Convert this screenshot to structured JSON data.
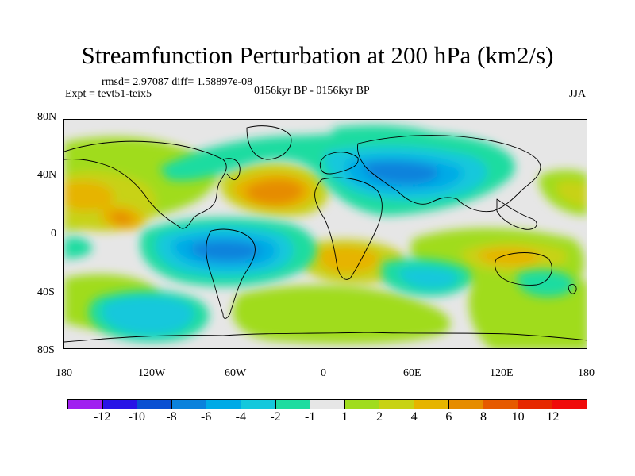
{
  "title": "Streamfunction Perturbation at 200 hPa (km2/s)",
  "stats_line": "rmsd= 2.97087 diff= 1.58897e-08",
  "experiment": "Expt = tevt51-teix5",
  "period": "0156kyr BP - 0156kyr BP",
  "season": "JJA",
  "lat_labels": [
    "80N",
    "40N",
    "0",
    "40S",
    "80S"
  ],
  "lon_labels": [
    "180",
    "120W",
    "60W",
    "0",
    "60E",
    "120E",
    "180"
  ],
  "colorbar": {
    "labels": [
      "-12",
      "-10",
      "-8",
      "-6",
      "-4",
      "-2",
      "-1",
      "1",
      "2",
      "4",
      "6",
      "8",
      "10",
      "12"
    ],
    "colors": [
      "#a020f0",
      "#2814e6",
      "#0a50d2",
      "#0a82dc",
      "#00aae6",
      "#14c8dc",
      "#1edca0",
      "#e6e6e6",
      "#a0dc1e",
      "#c8d214",
      "#e6b400",
      "#e68c00",
      "#e65a00",
      "#e62800",
      "#f00a0a"
    ]
  }
}
